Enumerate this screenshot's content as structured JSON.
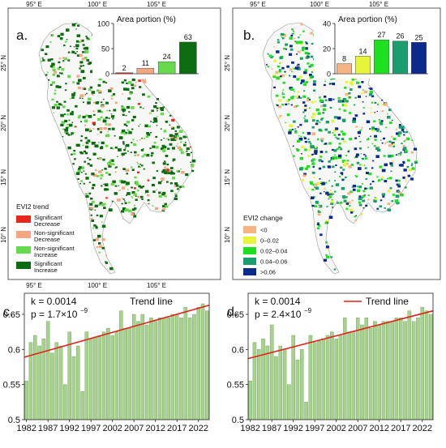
{
  "map_a": {
    "letter": "a.",
    "lon_ticks": [
      "95° E",
      "100° E",
      "105° E"
    ],
    "lat_ticks": [
      "25° N",
      "20° N",
      "15° N",
      "10° N"
    ],
    "legend_title": "EVI2 trend",
    "legend": [
      {
        "label1": "Significant",
        "label2": "Decrease",
        "color": "#e8261a"
      },
      {
        "label1": "Non-significant",
        "label2": "Decrease",
        "color": "#f4a682"
      },
      {
        "label1": "Non-significant",
        "label2": "Increase",
        "color": "#66d94c"
      },
      {
        "label1": "Significant",
        "label2": "Increase",
        "color": "#0d6b12"
      }
    ]
  },
  "map_b": {
    "letter": "b.",
    "lon_ticks": [
      "95° E",
      "100° E",
      "105° E"
    ],
    "lat_ticks": [
      "25° N",
      "20° N",
      "15° N",
      "10° N"
    ],
    "legend_title": "EVI2 change",
    "legend": [
      {
        "label": "<0",
        "color": "#f5b482"
      },
      {
        "label": "0–0.02",
        "color": "#e6f53a"
      },
      {
        "label": "0.02–0.04",
        "color": "#1fe01f"
      },
      {
        "label": "0.04–0.06",
        "color": "#1a9e6e"
      },
      {
        "label": ">0.06",
        "color": "#0a2a8c"
      }
    ]
  },
  "chart_data": [
    {
      "type": "bar",
      "title": "Area portion (%)",
      "categories": [
        "Significant Decrease",
        "Non-significant Decrease",
        "Non-significant Increase",
        "Significant Increase"
      ],
      "values": [
        2,
        11,
        24,
        63
      ],
      "data_labels": [
        "2",
        "11",
        "24",
        "63"
      ],
      "colors": [
        "#e8261a",
        "#f4a682",
        "#66d94c",
        "#0d6b12"
      ],
      "ylim": [
        0,
        100
      ],
      "yticks": [
        "0",
        "50",
        "100"
      ]
    },
    {
      "type": "bar",
      "title": "Area portion (%)",
      "categories": [
        "<0",
        "0–0.02",
        "0.02–0.04",
        "0.04–0.06",
        ">0.06"
      ],
      "values": [
        8,
        14,
        27,
        26,
        25
      ],
      "data_labels": [
        "8",
        "14",
        "27",
        "26",
        "25"
      ],
      "colors": [
        "#f5b482",
        "#e6f53a",
        "#1fe01f",
        "#1a9e6e",
        "#0a2a8c"
      ],
      "ylim": [
        0,
        40
      ],
      "yticks": [
        "0",
        "20",
        "40"
      ]
    },
    {
      "type": "bar",
      "panel": "c.",
      "stat_k": "k = 0.0014",
      "stat_p": "p = 1.7×10",
      "stat_p_exp": "−9",
      "legend": "Trend line",
      "x": [
        1982,
        1983,
        1984,
        1985,
        1986,
        1987,
        1988,
        1989,
        1990,
        1991,
        1992,
        1993,
        1994,
        1995,
        1996,
        1997,
        1998,
        1999,
        2000,
        2001,
        2002,
        2003,
        2004,
        2005,
        2006,
        2007,
        2008,
        2009,
        2010,
        2011,
        2012,
        2013,
        2014,
        2015,
        2016,
        2017,
        2018,
        2019,
        2020,
        2021,
        2022,
        2023,
        2024
      ],
      "values": [
        0.555,
        0.61,
        0.62,
        0.605,
        0.615,
        0.64,
        0.595,
        0.61,
        0.605,
        0.55,
        0.625,
        0.59,
        0.605,
        0.54,
        0.625,
        0.615,
        0.618,
        0.62,
        0.625,
        0.63,
        0.62,
        0.625,
        0.655,
        0.63,
        0.63,
        0.65,
        0.64,
        0.65,
        0.635,
        0.645,
        0.64,
        0.645,
        0.645,
        0.645,
        0.65,
        0.65,
        0.645,
        0.66,
        0.645,
        0.65,
        0.66,
        0.665,
        0.655
      ],
      "trend": [
        0.589,
        0.663
      ],
      "xticks": [
        "1982",
        "1987",
        "1992",
        "1997",
        "2002",
        "2007",
        "2012",
        "2017",
        "2022"
      ],
      "yticks": [
        "0.5",
        "0.55",
        "0.6",
        "0.65"
      ],
      "ylim": [
        0.5,
        0.68
      ]
    },
    {
      "type": "bar",
      "panel": "d.",
      "stat_k": "k = 0.0014",
      "stat_p": "p = 2.4×10",
      "stat_p_exp": "−9",
      "legend": "Trend line",
      "x": [
        1982,
        1983,
        1984,
        1985,
        1986,
        1987,
        1988,
        1989,
        1990,
        1991,
        1992,
        1993,
        1994,
        1995,
        1996,
        1997,
        1998,
        1999,
        2000,
        2001,
        2002,
        2003,
        2004,
        2005,
        2006,
        2007,
        2008,
        2009,
        2010,
        2011,
        2012,
        2013,
        2014,
        2015,
        2016,
        2017,
        2018,
        2019,
        2020,
        2021,
        2022,
        2023,
        2024
      ],
      "values": [
        0.555,
        0.61,
        0.6,
        0.615,
        0.605,
        0.635,
        0.59,
        0.605,
        0.6,
        0.55,
        0.62,
        0.585,
        0.6,
        0.525,
        0.62,
        0.61,
        0.612,
        0.615,
        0.62,
        0.625,
        0.615,
        0.62,
        0.645,
        0.625,
        0.625,
        0.645,
        0.635,
        0.645,
        0.63,
        0.64,
        0.635,
        0.64,
        0.64,
        0.64,
        0.645,
        0.645,
        0.64,
        0.655,
        0.64,
        0.645,
        0.66,
        0.655,
        0.65
      ],
      "trend": [
        0.587,
        0.655
      ],
      "xticks": [
        "1982",
        "1987",
        "1992",
        "1997",
        "2002",
        "2007",
        "2012",
        "2017",
        "2022"
      ],
      "yticks": [
        "0.5",
        "0.55",
        "0.6",
        "0.65"
      ],
      "ylim": [
        0.5,
        0.68
      ]
    }
  ]
}
